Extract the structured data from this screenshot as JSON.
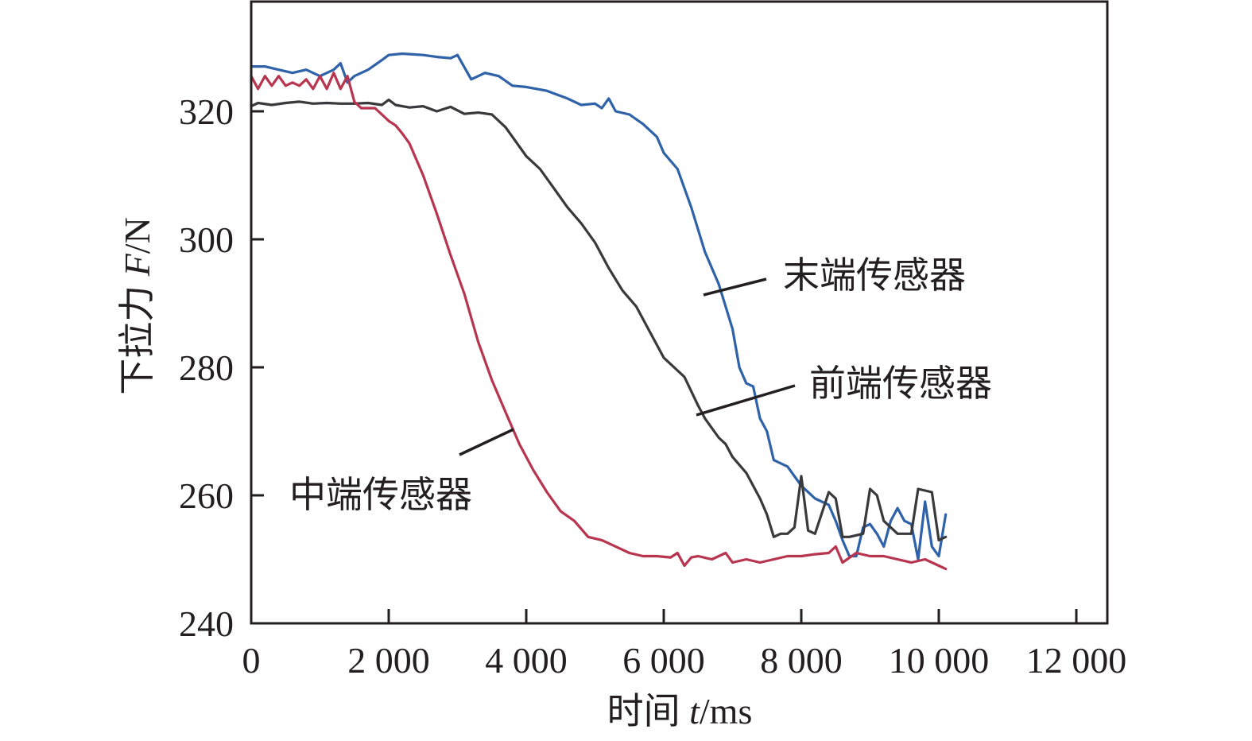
{
  "chart_data": {
    "type": "line",
    "title": "",
    "xlabel": "时间 t/ms",
    "xlabel_parts": {
      "prefix": "时间 ",
      "var": "t",
      "suffix": "/ms"
    },
    "ylabel": "下拉力 F/N",
    "ylabel_parts": {
      "prefix": "下拉力 ",
      "var": "F",
      "suffix": "/N"
    },
    "xlim": [
      0,
      12500
    ],
    "ylim": [
      240,
      337
    ],
    "xticks": [
      0,
      2000,
      4000,
      6000,
      8000,
      10000,
      12000
    ],
    "xtick_labels": [
      "0",
      "2 000",
      "4 000",
      "6 000",
      "8 000",
      "10 000",
      "12 000"
    ],
    "yticks": [
      240,
      260,
      280,
      300,
      320
    ],
    "ytick_labels": [
      "240",
      "260",
      "280",
      "300",
      "320"
    ],
    "grid": false,
    "legend": "none (inline annotations)",
    "series": [
      {
        "name": "末端传感器",
        "color": "#2f62a8",
        "annotation": {
          "text": "末端传感器",
          "anchor": [
            6550,
            292
          ]
        },
        "x": [
          0,
          200,
          400,
          600,
          800,
          1000,
          1200,
          1300,
          1400,
          1500,
          1700,
          1900,
          2000,
          2200,
          2500,
          2700,
          2900,
          3000,
          3200,
          3400,
          3600,
          3800,
          4000,
          4300,
          4600,
          4800,
          5000,
          5100,
          5200,
          5300,
          5500,
          5700,
          5900,
          6000,
          6200,
          6400,
          6600,
          6800,
          7000,
          7100,
          7200,
          7300,
          7400,
          7500,
          7600,
          7800,
          8000,
          8200,
          8400,
          8500,
          8600,
          8700,
          8800,
          8900,
          9000,
          9100,
          9200,
          9300,
          9400,
          9500,
          9600,
          9700,
          9800,
          9900,
          10000,
          10100
        ],
        "y": [
          327,
          327,
          326.5,
          326,
          326.5,
          325.5,
          326.5,
          327.5,
          324.5,
          325.5,
          326.5,
          328,
          328.8,
          329,
          328.8,
          328.5,
          328.3,
          328.8,
          325,
          326,
          325.5,
          324,
          323.8,
          323.2,
          322,
          321,
          321.2,
          320.5,
          322,
          320,
          319.5,
          318,
          316,
          313.5,
          311,
          305,
          298,
          293,
          286,
          280,
          277.5,
          277,
          272,
          270,
          265.5,
          264.5,
          261.5,
          259.5,
          258.5,
          256,
          253,
          250.5,
          250.5,
          255,
          255.5,
          254,
          252,
          256,
          258,
          256,
          255.5,
          250,
          259,
          252,
          250.5,
          257
        ]
      },
      {
        "name": "前端传感器",
        "color": "#3a3a3c",
        "annotation": {
          "text": "前端传感器",
          "anchor": [
            6450,
            272
          ]
        },
        "x": [
          0,
          100,
          300,
          500,
          700,
          900,
          1100,
          1300,
          1500,
          1700,
          1900,
          2000,
          2100,
          2300,
          2500,
          2700,
          2900,
          3100,
          3300,
          3500,
          3700,
          3800,
          4000,
          4200,
          4400,
          4600,
          4800,
          5000,
          5200,
          5400,
          5600,
          5800,
          6000,
          6200,
          6300,
          6500,
          6600,
          6800,
          6900,
          7000,
          7200,
          7400,
          7500,
          7600,
          7700,
          7800,
          7900,
          8000,
          8100,
          8200,
          8400,
          8500,
          8600,
          8700,
          8900,
          9000,
          9100,
          9200,
          9400,
          9600,
          9700,
          9900,
          10000,
          10100
        ],
        "y": [
          320.8,
          321.3,
          321,
          321.3,
          321.5,
          321.2,
          321.3,
          321.2,
          321.2,
          321.3,
          321,
          321.8,
          321,
          320.6,
          320.8,
          320,
          320.7,
          319.6,
          319.8,
          319.5,
          317.5,
          316,
          313,
          311,
          308,
          305,
          302.5,
          299.5,
          295.5,
          292,
          289.5,
          285.5,
          281.5,
          279.5,
          278.5,
          274,
          272,
          269,
          268,
          266,
          263.5,
          259.5,
          257,
          253.5,
          254,
          254,
          255,
          263,
          254.5,
          254,
          260.5,
          259.5,
          253.5,
          253.5,
          254,
          261,
          260,
          256,
          254,
          254,
          261,
          260.5,
          253,
          253.5
        ]
      },
      {
        "name": "中端传感器",
        "color": "#b8354f",
        "annotation": {
          "text": "中端传感器",
          "anchor": [
            3820,
            270
          ]
        },
        "x": [
          0,
          100,
          200,
          300,
          400,
          500,
          600,
          700,
          800,
          900,
          1000,
          1100,
          1200,
          1300,
          1400,
          1500,
          1600,
          1800,
          1900,
          2000,
          2100,
          2200,
          2300,
          2500,
          2700,
          2900,
          3100,
          3300,
          3500,
          3700,
          3900,
          4100,
          4300,
          4500,
          4700,
          4900,
          5100,
          5300,
          5500,
          5700,
          5900,
          6100,
          6200,
          6300,
          6400,
          6500,
          6700,
          6900,
          7000,
          7200,
          7400,
          7600,
          7800,
          8000,
          8200,
          8400,
          8500,
          8600,
          8800,
          9000,
          9200,
          9400,
          9600,
          9800,
          10000,
          10100
        ],
        "y": [
          325.5,
          323.5,
          325.5,
          324,
          325.5,
          324,
          324.5,
          324,
          325,
          323.5,
          325.5,
          323.5,
          326,
          323.5,
          325.5,
          321.5,
          320.5,
          320.5,
          319.5,
          318.5,
          317.8,
          316.5,
          315,
          310,
          304,
          297.5,
          291.5,
          284,
          278,
          273,
          268,
          264,
          260.5,
          257.5,
          256,
          253.5,
          253,
          252,
          251,
          250.5,
          250.5,
          250.3,
          251,
          249,
          250.3,
          250.5,
          250,
          251,
          249.5,
          250,
          249.5,
          250,
          250.5,
          250.5,
          250.8,
          251,
          252,
          249.5,
          251,
          250.5,
          250.5,
          250,
          249.5,
          250,
          249,
          248.5
        ]
      }
    ]
  }
}
